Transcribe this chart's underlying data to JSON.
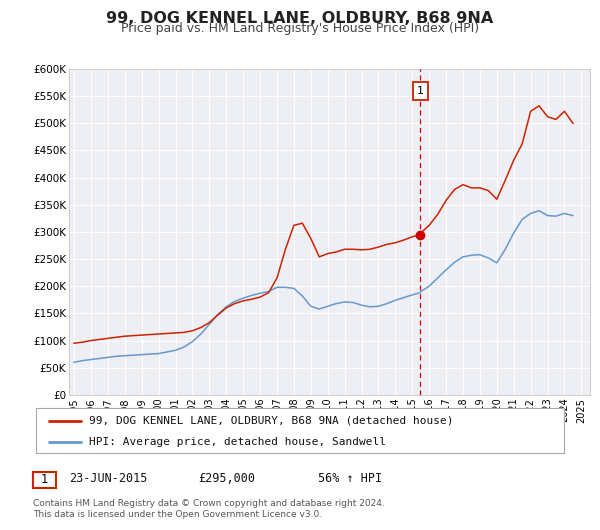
{
  "title": "99, DOG KENNEL LANE, OLDBURY, B68 9NA",
  "subtitle": "Price paid vs. HM Land Registry's House Price Index (HPI)",
  "title_fontsize": 11.5,
  "subtitle_fontsize": 9,
  "background_color": "#ffffff",
  "plot_bg_color": "#eeeef5",
  "grid_color": "#ffffff",
  "ylim": [
    0,
    600000
  ],
  "yticks": [
    0,
    50000,
    100000,
    150000,
    200000,
    250000,
    300000,
    350000,
    400000,
    450000,
    500000,
    550000,
    600000
  ],
  "ytick_labels": [
    "£0",
    "£50K",
    "£100K",
    "£150K",
    "£200K",
    "£250K",
    "£300K",
    "£350K",
    "£400K",
    "£450K",
    "£500K",
    "£550K",
    "£600K"
  ],
  "xlim_start": 1994.7,
  "xlim_end": 2025.5,
  "xticks": [
    1995,
    1996,
    1997,
    1998,
    1999,
    2000,
    2001,
    2002,
    2003,
    2004,
    2005,
    2006,
    2007,
    2008,
    2009,
    2010,
    2011,
    2012,
    2013,
    2014,
    2015,
    2016,
    2017,
    2018,
    2019,
    2020,
    2021,
    2022,
    2023,
    2024,
    2025
  ],
  "vline_x": 2015.48,
  "vline_color": "#cc0000",
  "sale_marker_x": 2015.48,
  "sale_marker_y": 295000,
  "sale_marker_color": "#cc0000",
  "annotation_label": "1",
  "legend_line1_color": "#cc2200",
  "legend_line1_label": "99, DOG KENNEL LANE, OLDBURY, B68 9NA (detached house)",
  "legend_line2_color": "#6699cc",
  "legend_line2_label": "HPI: Average price, detached house, Sandwell",
  "footer_date": "23-JUN-2015",
  "footer_price": "£295,000",
  "footer_hpi": "56% ↑ HPI",
  "footer_copyright": "Contains HM Land Registry data © Crown copyright and database right 2024.\nThis data is licensed under the Open Government Licence v3.0.",
  "red_line_x": [
    1995.0,
    1995.5,
    1996.0,
    1996.5,
    1997.0,
    1997.5,
    1998.0,
    1998.5,
    1999.0,
    1999.5,
    2000.0,
    2000.5,
    2001.0,
    2001.5,
    2002.0,
    2002.5,
    2003.0,
    2003.5,
    2004.0,
    2004.5,
    2005.0,
    2005.5,
    2006.0,
    2006.5,
    2007.0,
    2007.5,
    2008.0,
    2008.5,
    2009.0,
    2009.5,
    2010.0,
    2010.5,
    2011.0,
    2011.5,
    2012.0,
    2012.5,
    2013.0,
    2013.5,
    2014.0,
    2014.5,
    2015.0,
    2015.48,
    2015.5,
    2016.0,
    2016.5,
    2017.0,
    2017.5,
    2018.0,
    2018.5,
    2019.0,
    2019.5,
    2020.0,
    2020.5,
    2021.0,
    2021.5,
    2022.0,
    2022.5,
    2023.0,
    2023.5,
    2024.0,
    2024.5
  ],
  "red_line_y": [
    95000,
    97000,
    100000,
    102000,
    104000,
    106000,
    108000,
    109000,
    110000,
    111000,
    112000,
    113000,
    114000,
    115000,
    118000,
    124000,
    133000,
    147000,
    160000,
    168000,
    173000,
    176000,
    180000,
    188000,
    215000,
    268000,
    312000,
    316000,
    288000,
    254000,
    260000,
    263000,
    268000,
    268000,
    267000,
    268000,
    272000,
    277000,
    280000,
    285000,
    291000,
    295000,
    298000,
    312000,
    332000,
    358000,
    378000,
    387000,
    381000,
    381000,
    376000,
    360000,
    395000,
    432000,
    462000,
    522000,
    532000,
    512000,
    507000,
    522000,
    500000
  ],
  "blue_line_x": [
    1995.0,
    1995.5,
    1996.0,
    1996.5,
    1997.0,
    1997.5,
    1998.0,
    1998.5,
    1999.0,
    1999.5,
    2000.0,
    2000.5,
    2001.0,
    2001.5,
    2002.0,
    2002.5,
    2003.0,
    2003.5,
    2004.0,
    2004.5,
    2005.0,
    2005.5,
    2006.0,
    2006.5,
    2007.0,
    2007.5,
    2008.0,
    2008.5,
    2009.0,
    2009.5,
    2010.0,
    2010.5,
    2011.0,
    2011.5,
    2012.0,
    2012.5,
    2013.0,
    2013.5,
    2014.0,
    2014.5,
    2015.0,
    2015.48,
    2015.5,
    2016.0,
    2016.5,
    2017.0,
    2017.5,
    2018.0,
    2018.5,
    2019.0,
    2019.5,
    2020.0,
    2020.5,
    2021.0,
    2021.5,
    2022.0,
    2022.5,
    2023.0,
    2023.5,
    2024.0,
    2024.5
  ],
  "blue_line_y": [
    60000,
    63000,
    65000,
    67000,
    69000,
    71000,
    72000,
    73000,
    74000,
    75000,
    76000,
    79000,
    82000,
    88000,
    98000,
    112000,
    130000,
    148000,
    162000,
    172000,
    178000,
    183000,
    187000,
    190000,
    198000,
    198000,
    196000,
    182000,
    163000,
    158000,
    163000,
    168000,
    171000,
    170000,
    165000,
    162000,
    163000,
    168000,
    174000,
    179000,
    184000,
    188000,
    190000,
    200000,
    215000,
    230000,
    244000,
    254000,
    257000,
    258000,
    252000,
    243000,
    268000,
    298000,
    323000,
    334000,
    339000,
    330000,
    329000,
    334000,
    330000
  ]
}
